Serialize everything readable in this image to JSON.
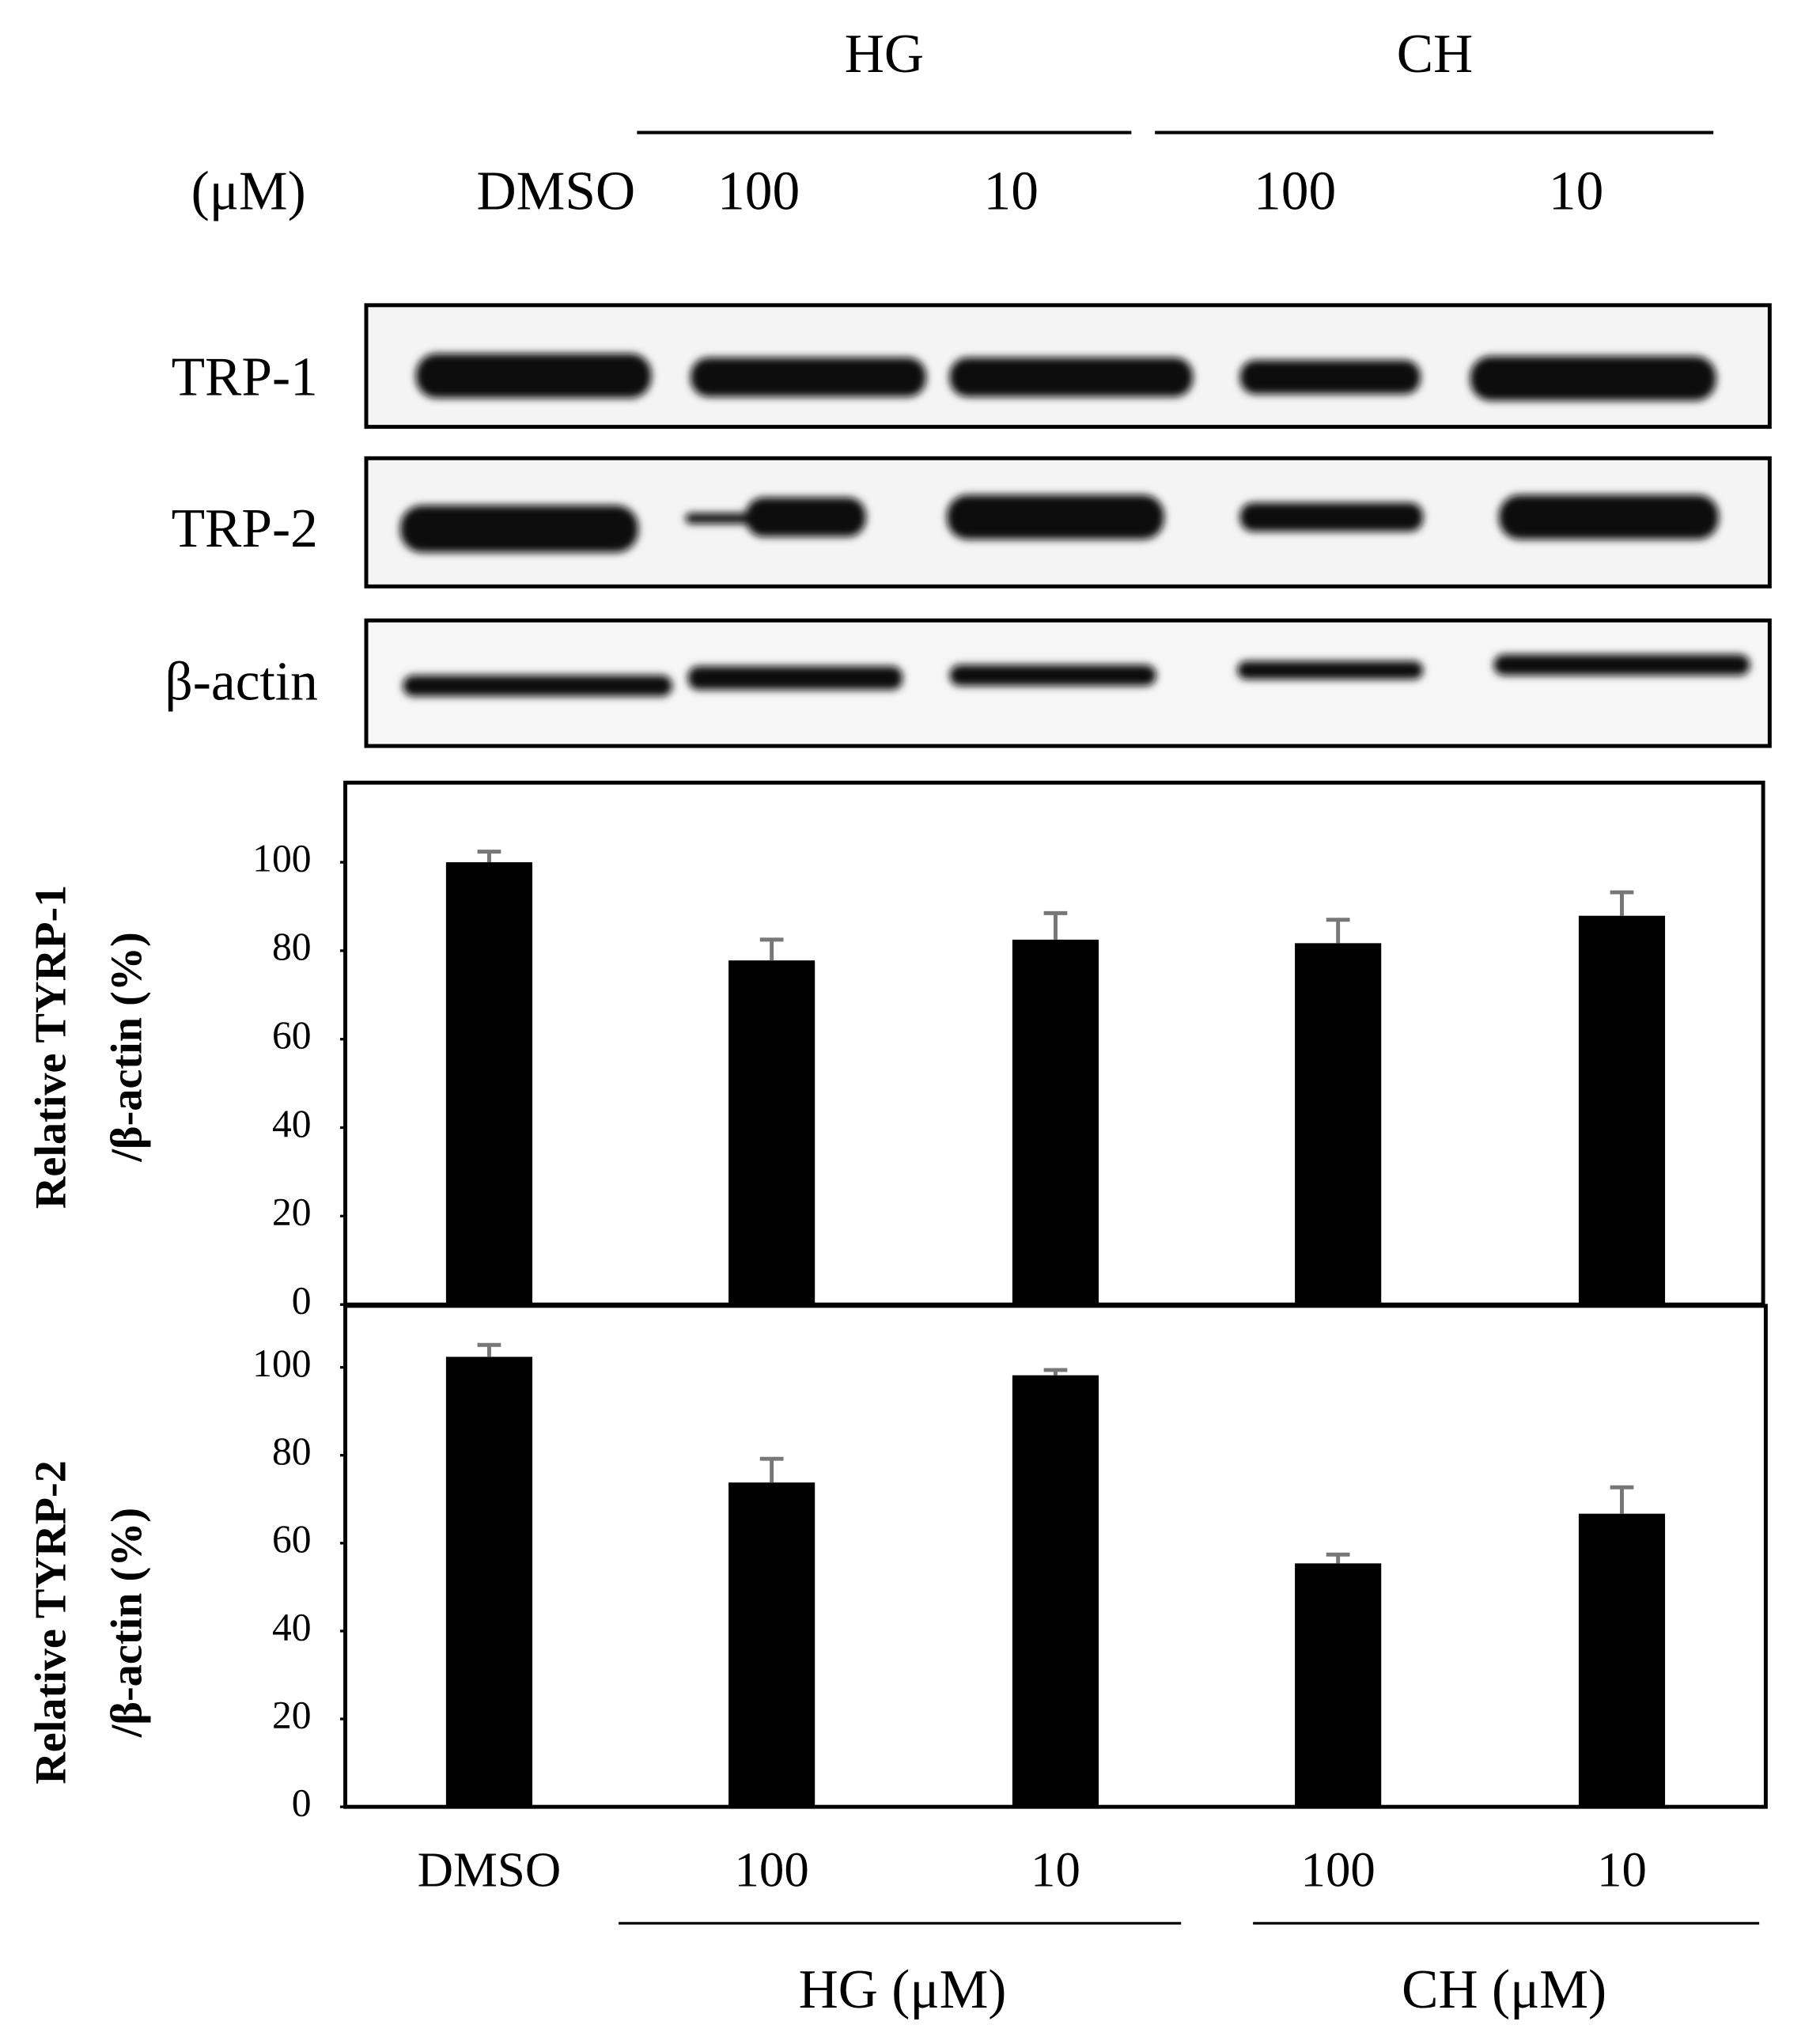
{
  "blot": {
    "groups": [
      "HG",
      "CH"
    ],
    "unit": "(μM)",
    "lanes": [
      "DMSO",
      "100",
      "10",
      "100",
      "10"
    ],
    "rows": [
      "TRP-1",
      "TRP-2",
      "β-actin"
    ]
  },
  "chart_data": [
    {
      "type": "bar",
      "y_label": [
        "Relative TYRP-1",
        "/β-actin (%)"
      ],
      "categories": [
        null,
        null,
        null,
        null,
        null
      ],
      "values": [
        100,
        77.8,
        82.5,
        81.7,
        87.9
      ],
      "errors": [
        2.4,
        4.7,
        6,
        5.3,
        5.3
      ],
      "color": "#000000",
      "ylim": [
        0,
        118
      ],
      "yticks": [
        0,
        20,
        40,
        60,
        80,
        100
      ]
    },
    {
      "type": "bar",
      "y_label": [
        "Relative TYRP-2",
        "/β-actin (%)"
      ],
      "categories": [
        "DMSO",
        "100",
        "10",
        "100",
        "10"
      ],
      "groups": [
        "HG (μM)",
        "CH (μM)"
      ],
      "values": [
        102.4,
        73.8,
        98.2,
        55.4,
        66.7
      ],
      "errors": [
        2.7,
        5.4,
        1.2,
        2,
        6
      ],
      "color": "#000000",
      "ylim": [
        0,
        114
      ],
      "yticks": [
        0,
        20,
        40,
        60,
        80,
        100
      ]
    }
  ]
}
